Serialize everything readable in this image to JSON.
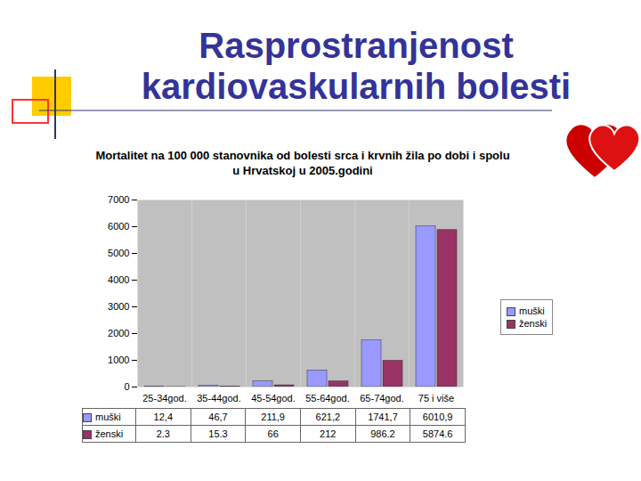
{
  "chart_data": {
    "type": "bar",
    "title": "Rasprostranjenost kardiovaskularnih bolesti",
    "subtitle": "Mortalitet na 100 000 stanovnika od bolesti srca i krvnih žila po dobi i spolu u Hrvatskoj u 2005.godini",
    "categories": [
      "25-34god.",
      "35-44god.",
      "45-54god.",
      "55-64god.",
      "65-74god.",
      "75 i više"
    ],
    "series": [
      {
        "name": "muški",
        "color": "#9999ff",
        "values": [
          12.4,
          46.7,
          211.9,
          621.2,
          1741.7,
          6010.9
        ],
        "value_labels": [
          "12,4",
          "46,7",
          "211,9",
          "621,2",
          "1741,7",
          "6010,9"
        ]
      },
      {
        "name": "ženski",
        "color": "#993366",
        "values": [
          2.3,
          15.3,
          66,
          212,
          986.2,
          5874.6
        ],
        "value_labels": [
          "2.3",
          "15.3",
          "66",
          "212",
          "986.2",
          "5874.6"
        ]
      }
    ],
    "ylim": [
      0,
      7000
    ],
    "yticks": [
      0,
      1000,
      2000,
      3000,
      4000,
      5000,
      6000,
      7000
    ],
    "grid": false,
    "legend": "right"
  }
}
